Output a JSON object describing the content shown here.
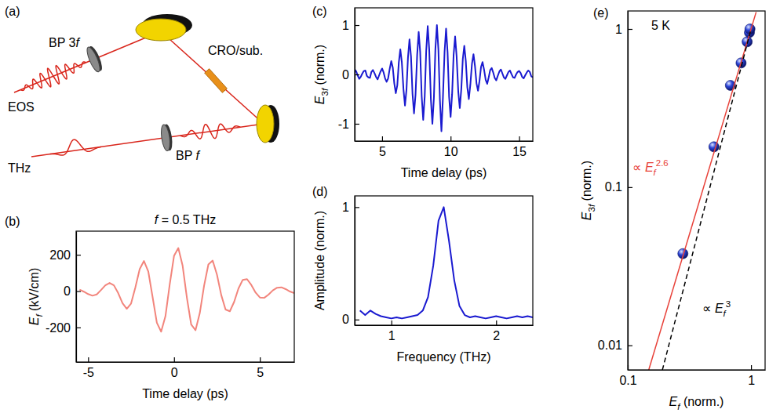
{
  "chart_data": [
    {
      "type": "diagram",
      "panel_label": "(a)",
      "labels": [
        "BP 3f",
        "CRO/sub.",
        "EOS",
        "BP f",
        "THz"
      ]
    },
    {
      "type": "line",
      "panel_label": "(b)",
      "title": "f = 0.5 THz",
      "x_label": "Time delay (ps)",
      "y_label": "Ef (kV/cm)",
      "x": [
        -5.5,
        -5.25,
        -5,
        -4.75,
        -4.5,
        -4.25,
        -4,
        -3.75,
        -3.5,
        -3.25,
        -3,
        -2.75,
        -2.5,
        -2.25,
        -2,
        -1.75,
        -1.5,
        -1.25,
        -1,
        -0.75,
        -0.5,
        -0.25,
        0,
        0.25,
        0.5,
        0.75,
        1,
        1.25,
        1.5,
        1.75,
        2,
        2.25,
        2.5,
        2.75,
        3,
        3.25,
        3.5,
        3.75,
        4,
        4.25,
        4.5,
        4.75,
        5,
        5.25,
        5.5,
        5.75,
        6,
        6.25,
        6.5,
        6.75,
        7
      ],
      "series": [
        {
          "color": "#f2857c",
          "values": [
            8,
            -3,
            -16,
            -25,
            -18,
            6,
            32,
            45,
            32,
            -11,
            -66,
            -97,
            -68,
            21,
            121,
            166,
            109,
            -31,
            -174,
            -223,
            -138,
            37,
            194,
            237,
            140,
            -37,
            -184,
            -215,
            -121,
            30,
            147,
            168,
            91,
            -22,
            -101,
            -111,
            -59,
            14,
            62,
            66,
            34,
            -8,
            -35,
            -37,
            -19,
            4,
            19,
            21,
            11,
            -2,
            -11
          ]
        }
      ],
      "xlim": [
        -5.7,
        7
      ],
      "ylim": [
        -390,
        330
      ],
      "xticks": [
        -5,
        0,
        5
      ],
      "yticks": [
        -200,
        0,
        200
      ]
    },
    {
      "type": "line",
      "panel_label": "(c)",
      "x_label": "Time delay (ps)",
      "y_label": "E3f (norm.)",
      "x": [
        3,
        3.11,
        3.22,
        3.33,
        3.44,
        3.56,
        3.67,
        3.78,
        3.89,
        4,
        4.11,
        4.22,
        4.33,
        4.44,
        4.56,
        4.67,
        4.78,
        4.89,
        5,
        5.11,
        5.22,
        5.33,
        5.44,
        5.56,
        5.67,
        5.78,
        5.89,
        6,
        6.11,
        6.22,
        6.33,
        6.44,
        6.56,
        6.67,
        6.78,
        6.89,
        7,
        7.11,
        7.22,
        7.33,
        7.44,
        7.56,
        7.67,
        7.78,
        7.89,
        8,
        8.11,
        8.22,
        8.33,
        8.44,
        8.56,
        8.67,
        8.78,
        8.89,
        9,
        9.11,
        9.22,
        9.33,
        9.44,
        9.56,
        9.67,
        9.78,
        9.89,
        10,
        10.11,
        10.22,
        10.33,
        10.44,
        10.56,
        10.67,
        10.78,
        10.89,
        11,
        11.11,
        11.22,
        11.33,
        11.44,
        11.56,
        11.67,
        11.78,
        11.89,
        12,
        12.11,
        12.22,
        12.33,
        12.44,
        12.56,
        12.67,
        12.78,
        12.89,
        13,
        13.11,
        13.22,
        13.33,
        13.44,
        13.56,
        13.67,
        13.78,
        13.89,
        14,
        14.11,
        14.22,
        14.33,
        14.44,
        14.56,
        14.67,
        14.78,
        14.89,
        15,
        15.11,
        15.22,
        15.33,
        15.44,
        15.56,
        15.67,
        15.78,
        15.89,
        16
      ],
      "series": [
        {
          "color": "#1a1ad0",
          "values": [
            0.1,
            0.06,
            -0.02,
            -0.09,
            -0.05,
            0.02,
            0.07,
            0.08,
            -0.03,
            -0.06,
            -0.07,
            0.05,
            0.09,
            0.03,
            -0.05,
            -0.1,
            -0.02,
            0.06,
            0.12,
            0.04,
            -0.08,
            -0.15,
            -0.08,
            0.12,
            0.27,
            0.14,
            -0.18,
            -0.38,
            -0.22,
            0.24,
            0.51,
            0.25,
            -0.3,
            -0.63,
            -0.31,
            0.35,
            0.71,
            0.36,
            -0.39,
            -0.79,
            -0.41,
            0.4,
            0.86,
            0.45,
            -0.44,
            -0.92,
            -0.45,
            0.48,
            0.98,
            0.5,
            -0.5,
            -1.0,
            -0.48,
            0.52,
            1.0,
            0.5,
            -0.52,
            -1.15,
            -0.47,
            0.46,
            0.93,
            0.44,
            -0.45,
            -0.86,
            -0.4,
            0.4,
            0.77,
            0.36,
            -0.35,
            -0.68,
            -0.3,
            0.31,
            0.58,
            0.27,
            -0.26,
            -0.5,
            -0.21,
            0.22,
            0.41,
            0.17,
            -0.18,
            -0.33,
            -0.13,
            0.15,
            0.25,
            0.1,
            -0.11,
            -0.19,
            -0.06,
            0.09,
            0.13,
            0.04,
            -0.07,
            -0.12,
            -0.03,
            0.06,
            0.1,
            0.02,
            -0.06,
            -0.09,
            -0.02,
            0.05,
            0.08,
            0.01,
            -0.06,
            -0.07,
            0.0,
            0.05,
            0.07,
            0.03,
            -0.05,
            -0.08,
            -0.02,
            0.04,
            0.08,
            0.05,
            -0.04,
            -0.06
          ]
        }
      ],
      "xlim": [
        3,
        16
      ],
      "ylim": [
        -1.35,
        1.35
      ],
      "xticks": [
        5,
        10,
        15
      ],
      "yticks": [
        -1,
        0,
        1
      ]
    },
    {
      "type": "line",
      "panel_label": "(d)",
      "x_label": "Frequency (THz)",
      "y_label": "Amplitude (norm.)",
      "x": [
        0.7,
        0.75,
        0.8,
        0.85,
        0.9,
        0.95,
        1,
        1.05,
        1.1,
        1.15,
        1.2,
        1.25,
        1.3,
        1.35,
        1.4,
        1.45,
        1.5,
        1.55,
        1.6,
        1.65,
        1.7,
        1.75,
        1.8,
        1.85,
        1.9,
        1.95,
        2,
        2.05,
        2.1,
        2.15,
        2.2,
        2.25,
        2.3,
        2.35
      ],
      "series": [
        {
          "color": "#1a1ad0",
          "values": [
            0.08,
            0.04,
            0.08,
            0.05,
            0.03,
            0.02,
            0.01,
            0.02,
            0.01,
            0.02,
            0.03,
            0.04,
            0.08,
            0.2,
            0.48,
            0.88,
            1.0,
            0.7,
            0.35,
            0.12,
            0.04,
            0.02,
            0.03,
            0.02,
            0.01,
            0.02,
            0.03,
            0.02,
            0.01,
            0.02,
            0.03,
            0.02,
            0.03,
            0.02
          ]
        }
      ],
      "xlim": [
        0.65,
        2.35
      ],
      "ylim": [
        -0.05,
        1.1
      ],
      "xticks": [
        1,
        2
      ],
      "yticks": [
        0,
        1
      ]
    },
    {
      "type": "scatter",
      "panel_label": "(e)",
      "x_label": "Ef (norm.)",
      "y_label": "E3f (norm.)",
      "log": true,
      "annotations": [
        {
          "text": "5 K",
          "color": "#000000"
        },
        {
          "text": "∝ Ef2.6",
          "color": "#e8423a"
        },
        {
          "text": "∝ Ef3",
          "color": "#000000"
        }
      ],
      "series": [
        {
          "type": "scatter",
          "marker": "circle",
          "color": "#2b44d8",
          "x": [
            0.28,
            0.5,
            0.68,
            0.83,
            0.93,
            0.97,
            0.98
          ],
          "values": [
            0.038,
            0.18,
            0.44,
            0.61,
            0.83,
            0.95,
            1.0
          ]
        },
        {
          "type": "line",
          "line_style": "solid",
          "color": "#e8423a",
          "x": [
            0.148,
            1.1
          ],
          "values": [
            0.007,
            1.28
          ]
        },
        {
          "type": "line",
          "line_style": "dashed",
          "color": "#000000",
          "x": [
            0.191,
            1
          ],
          "values": [
            0.007,
            1
          ]
        }
      ],
      "xlim": [
        0.1,
        1.3
      ],
      "ylim": [
        0.007,
        1.3
      ],
      "xticks": [
        0.1,
        1
      ],
      "yticks": [
        0.01,
        0.1,
        1
      ]
    }
  ]
}
